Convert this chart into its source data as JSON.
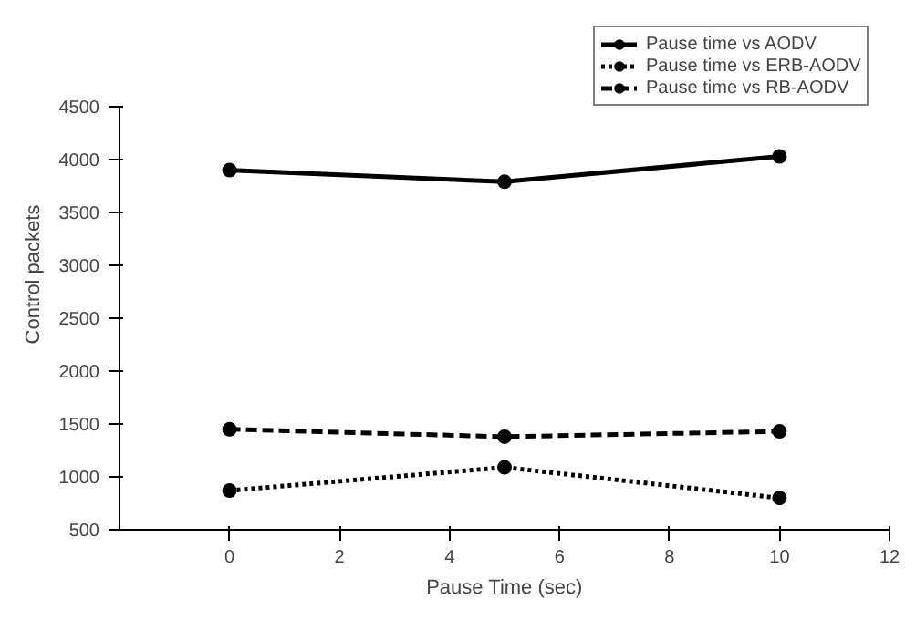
{
  "chart_data": {
    "type": "line",
    "xlabel": "Pause Time (sec)",
    "ylabel": "Control packets",
    "x": [
      0,
      5,
      10
    ],
    "series": [
      {
        "name": "Pause time vs AODV",
        "color": "#000000",
        "values": [
          3900,
          3790,
          4030
        ],
        "line_style": "solid",
        "marker": "circle"
      },
      {
        "name": "Pause time vs ERB-AODV",
        "color": "#000000",
        "values": [
          870,
          1090,
          800
        ],
        "line_style": "dotted",
        "marker": "circle"
      },
      {
        "name": "Pause time vs RB-AODV",
        "color": "#000000",
        "values": [
          1450,
          1380,
          1430
        ],
        "line_style": "dashed",
        "marker": "circle"
      }
    ],
    "xlim": [
      -2,
      12
    ],
    "xticks": [
      0,
      2,
      4,
      6,
      8,
      10,
      12
    ],
    "ylim": [
      500,
      4500
    ],
    "yticks": [
      500,
      1000,
      1500,
      2000,
      2500,
      3000,
      3500,
      4000,
      4500
    ],
    "grid": false,
    "legend": "top right"
  }
}
